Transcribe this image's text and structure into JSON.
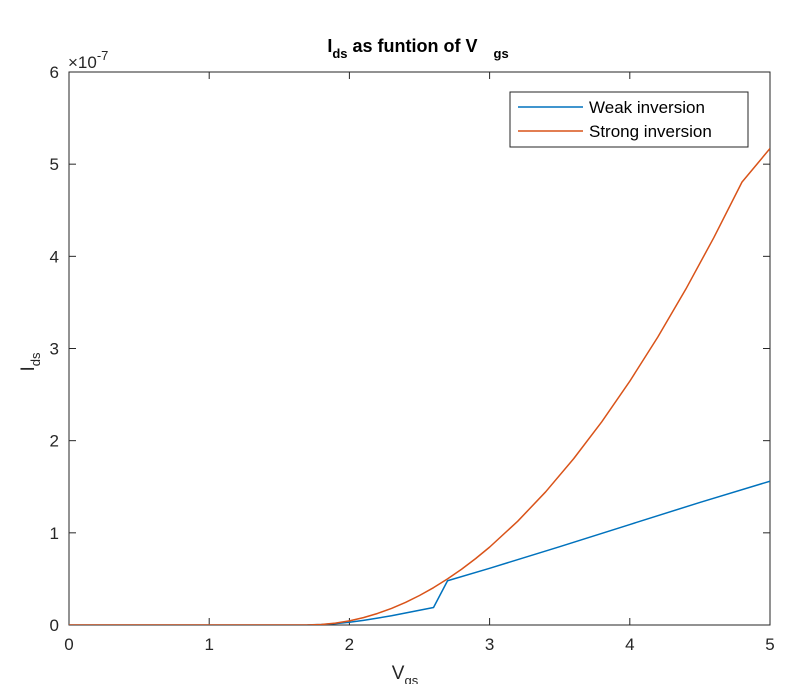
{
  "chart_data": {
    "type": "line",
    "title": {
      "main": "I",
      "main_sub": "ds",
      "rest": " as funtion of V",
      "rest_sub": "gs"
    },
    "xlabel": {
      "main": "V",
      "sub": "gs"
    },
    "ylabel": {
      "main": "I",
      "sub": "ds"
    },
    "xlim": [
      0,
      5
    ],
    "ylim": [
      0,
      6e-07
    ],
    "x_ticks": [
      0,
      1,
      2,
      3,
      4,
      5
    ],
    "x_tick_labels": [
      "0",
      "1",
      "2",
      "3",
      "4",
      "5"
    ],
    "y_ticks": [
      0,
      1e-07,
      2e-07,
      3e-07,
      4e-07,
      5e-07,
      6e-07
    ],
    "y_tick_labels": [
      "0",
      "1",
      "2",
      "3",
      "4",
      "5",
      "6"
    ],
    "y_exponent": {
      "base": "×10",
      "power": "-7"
    },
    "grid": false,
    "legend_position": "top-right",
    "series": [
      {
        "name": "Weak inversion",
        "color": "#0072BD",
        "points": [
          [
            0,
            0
          ],
          [
            1.5,
            0
          ],
          [
            1.7,
            1e-10
          ],
          [
            1.8,
            5e-10
          ],
          [
            1.9,
            1.5e-09
          ],
          [
            2.0,
            3e-09
          ],
          [
            2.1,
            5e-09
          ],
          [
            2.2,
            7.5e-09
          ],
          [
            2.3,
            1e-08
          ],
          [
            2.4,
            1.3e-08
          ],
          [
            2.5,
            1.6e-08
          ],
          [
            2.6,
            1.9e-08
          ],
          [
            2.7,
            4.8e-08
          ],
          [
            3.0,
            6.15e-08
          ],
          [
            3.5,
            8.5e-08
          ],
          [
            4.0,
            1.09e-07
          ],
          [
            4.5,
            1.33e-07
          ],
          [
            5.0,
            1.56e-07
          ]
        ]
      },
      {
        "name": "Strong inversion",
        "color": "#D95319",
        "points": [
          [
            0,
            0
          ],
          [
            1.7,
            0
          ],
          [
            1.8,
            5e-10
          ],
          [
            1.9,
            2e-09
          ],
          [
            2.0,
            4.5e-09
          ],
          [
            2.1,
            8e-09
          ],
          [
            2.2,
            1.25e-08
          ],
          [
            2.3,
            1.8e-08
          ],
          [
            2.4,
            2.45e-08
          ],
          [
            2.5,
            3.2e-08
          ],
          [
            2.6,
            4.05e-08
          ],
          [
            2.7,
            5e-08
          ],
          [
            2.8,
            6.05e-08
          ],
          [
            2.9,
            7.2e-08
          ],
          [
            3.0,
            8.45e-08
          ],
          [
            3.2,
            1.125e-07
          ],
          [
            3.4,
            1.445e-07
          ],
          [
            3.6,
            1.805e-07
          ],
          [
            3.8,
            2.205e-07
          ],
          [
            4.0,
            2.645e-07
          ],
          [
            4.2,
            3.125e-07
          ],
          [
            4.4,
            3.645e-07
          ],
          [
            4.6,
            4.205e-07
          ],
          [
            4.8,
            4.805e-07
          ],
          [
            5.0,
            5.17e-07
          ]
        ]
      }
    ]
  }
}
